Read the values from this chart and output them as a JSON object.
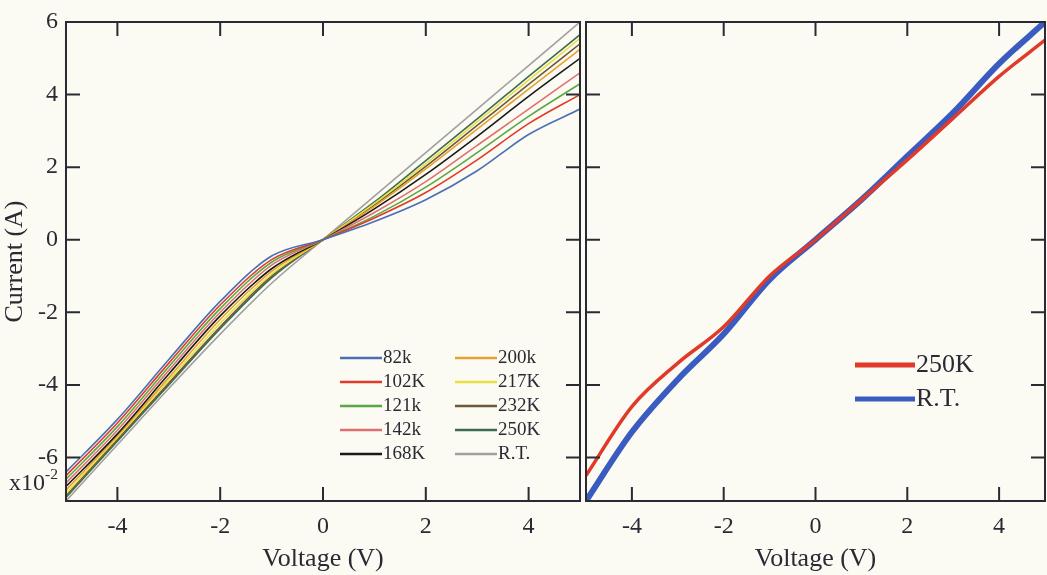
{
  "chart_data": [
    {
      "type": "line",
      "xlabel": "Voltage (V)",
      "ylabel": "Current (A)",
      "annotations": [
        "x10$^{-2}$"
      ],
      "x": [
        -5,
        -4,
        -3,
        -2,
        -1,
        0,
        1,
        2,
        3,
        4,
        5
      ],
      "xlim": [
        -5,
        5
      ],
      "xticks": [
        -4,
        -2,
        0,
        2,
        4
      ],
      "ylim": [
        -7.2,
        6
      ],
      "yticks": [
        -6,
        -4,
        -2,
        0,
        2,
        4,
        6
      ],
      "series": [
        {
          "name": "82k",
          "color": "#4a6fb5",
          "values": [
            -6.4,
            -4.95,
            -3.3,
            -1.7,
            -0.45,
            0,
            0.5,
            1.1,
            1.9,
            2.9,
            3.6
          ]
        },
        {
          "name": "102K",
          "color": "#e03a2a",
          "values": [
            -6.5,
            -5.05,
            -3.4,
            -1.8,
            -0.55,
            0,
            0.6,
            1.3,
            2.2,
            3.2,
            4.0
          ]
        },
        {
          "name": "121k",
          "color": "#5aa845",
          "values": [
            -6.6,
            -5.15,
            -3.5,
            -1.9,
            -0.62,
            0,
            0.65,
            1.45,
            2.4,
            3.4,
            4.3
          ]
        },
        {
          "name": "142k",
          "color": "#e07070",
          "values": [
            -6.7,
            -5.25,
            -3.6,
            -2.0,
            -0.7,
            0,
            0.75,
            1.6,
            2.6,
            3.6,
            4.6
          ]
        },
        {
          "name": "168K",
          "color": "#1a1a1a",
          "values": [
            -6.8,
            -5.35,
            -3.7,
            -2.1,
            -0.8,
            0,
            0.85,
            1.8,
            2.85,
            3.95,
            5.0
          ]
        },
        {
          "name": "200k",
          "color": "#e8a030",
          "values": [
            -6.9,
            -5.4,
            -3.8,
            -2.2,
            -0.87,
            0,
            0.92,
            1.95,
            3.05,
            4.15,
            5.25
          ]
        },
        {
          "name": "217K",
          "color": "#e6e040",
          "values": [
            -7.0,
            -5.45,
            -3.88,
            -2.3,
            -0.95,
            0,
            1.0,
            2.1,
            3.25,
            4.4,
            5.55
          ]
        },
        {
          "name": "232K",
          "color": "#6b5a3a",
          "values": [
            -7.05,
            -5.5,
            -3.95,
            -2.4,
            -1.0,
            0,
            0.96,
            2.02,
            3.15,
            4.28,
            5.4
          ]
        },
        {
          "name": "250K",
          "color": "#3d6b4f",
          "values": [
            -7.1,
            -5.55,
            -4.0,
            -2.45,
            -1.05,
            0,
            1.04,
            2.18,
            3.33,
            4.5,
            5.65
          ]
        },
        {
          "name": "R.T.",
          "color": "#a0a0a0",
          "values": [
            -7.2,
            -5.65,
            -4.1,
            -2.6,
            -1.2,
            0,
            1.2,
            2.4,
            3.6,
            4.8,
            6.0
          ]
        }
      ],
      "legend": "bottom right",
      "marker": "none",
      "line_style": "solid",
      "grid": false
    },
    {
      "type": "line",
      "xlabel": "Voltage (V)",
      "x": [
        -5,
        -4,
        -3,
        -2,
        -1,
        0,
        1,
        2,
        3,
        4,
        5
      ],
      "xlim": [
        -5,
        5
      ],
      "xticks": [
        -4,
        -2,
        0,
        2,
        4
      ],
      "ylim": [
        -7.2,
        6
      ],
      "yticks": [
        -6,
        -4,
        -2,
        0,
        2,
        4,
        6
      ],
      "tick_labels": "x",
      "series": [
        {
          "name": "250K",
          "color": "#e03a2a",
          "values": [
            -6.5,
            -4.6,
            -3.4,
            -2.4,
            -1.0,
            0,
            1.1,
            2.2,
            3.35,
            4.5,
            5.5
          ]
        },
        {
          "name": "R.T.",
          "color": "#3a5bc0",
          "values": [
            -7.2,
            -5.3,
            -3.85,
            -2.6,
            -1.1,
            0,
            1.1,
            2.3,
            3.5,
            4.85,
            6.0
          ]
        }
      ],
      "legend": "bottom right",
      "marker": "none",
      "line_style": "solid",
      "grid": false
    }
  ]
}
